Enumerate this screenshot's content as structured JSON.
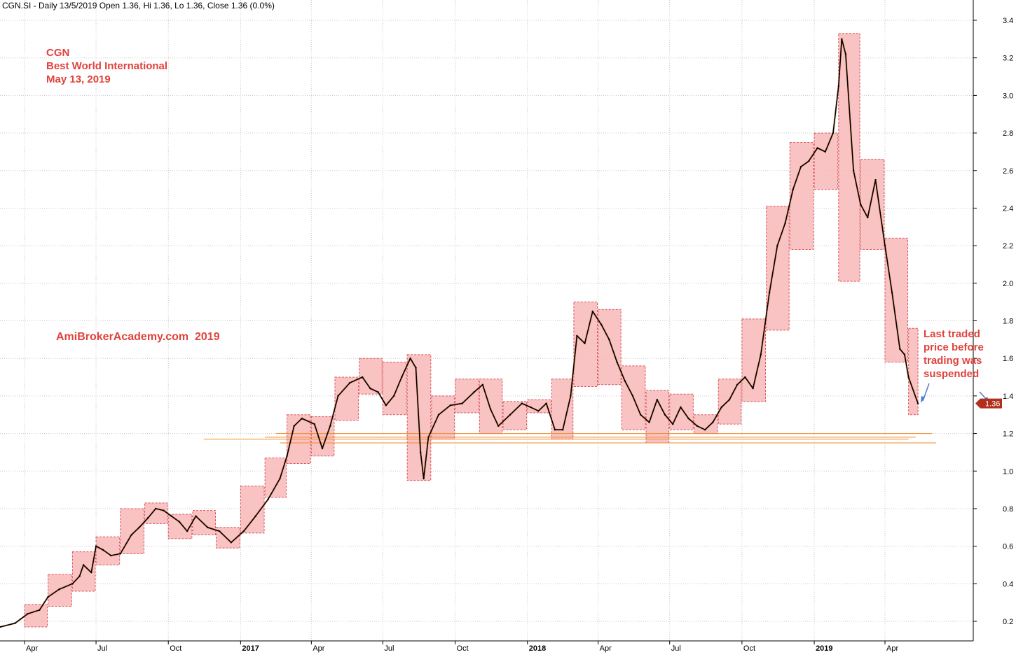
{
  "header": {
    "text": "CGN.SI - Daily 13/5/2019 Open 1.36, Hi 1.36, Lo 1.36, Close 1.36 (0.0%)"
  },
  "annotations": {
    "ticker": "CGN",
    "company": "Best World International",
    "date": "May 13, 2019",
    "watermark": "AmiBrokerAcademy.com  2019",
    "note_lines": [
      "Last traded",
      "price before",
      "trading was",
      "suspended"
    ]
  },
  "last_price_tag": "1.36",
  "colors": {
    "box_fill": "#f9b8b8",
    "box_stroke": "#d9545a",
    "price_line": "#000000",
    "support_line": "#f08a2a",
    "price_tag": "#b0301c",
    "annotation": "#e0433d",
    "arrow": "#4a7bd0"
  },
  "chart_data": {
    "type": "line",
    "title": "",
    "xlabel": "",
    "ylabel": "",
    "ylim": [
      0.1,
      3.45
    ],
    "y_ticks": [
      0.2,
      0.4,
      0.6,
      0.8,
      1.0,
      1.2,
      1.4,
      1.6,
      1.8,
      2.0,
      2.2,
      2.4,
      2.6,
      2.8,
      3.0,
      3.2,
      3.4
    ],
    "y_tick_labels": [
      "0.2",
      "0.4",
      "0.6",
      "0.8",
      "1.0",
      "1.2",
      "1.4",
      "1.6",
      "1.8",
      "2.0",
      "2.2",
      "2.4",
      "2.6",
      "2.8",
      "3.0",
      "3.2",
      "3.4"
    ],
    "x_ticks": [
      {
        "date": "2016-04-01",
        "label": "Apr",
        "year": false
      },
      {
        "date": "2016-07-01",
        "label": "Jul",
        "year": false
      },
      {
        "date": "2016-10-01",
        "label": "Oct",
        "year": false
      },
      {
        "date": "2017-01-01",
        "label": "2017",
        "year": true
      },
      {
        "date": "2017-04-01",
        "label": "Apr",
        "year": false
      },
      {
        "date": "2017-07-01",
        "label": "Jul",
        "year": false
      },
      {
        "date": "2017-10-01",
        "label": "Oct",
        "year": false
      },
      {
        "date": "2018-01-01",
        "label": "2018",
        "year": true
      },
      {
        "date": "2018-04-01",
        "label": "Apr",
        "year": false
      },
      {
        "date": "2018-07-01",
        "label": "Jul",
        "year": false
      },
      {
        "date": "2018-10-01",
        "label": "Oct",
        "year": false
      },
      {
        "date": "2019-01-01",
        "label": "2019",
        "year": true
      },
      {
        "date": "2019-04-01",
        "label": "Apr",
        "year": false
      }
    ],
    "series": [
      {
        "points": [
          [
            "2016-01-02",
            0.16
          ],
          [
            "2016-02-01",
            0.16
          ],
          [
            "2016-03-01",
            0.17
          ],
          [
            "2016-03-20",
            0.19
          ],
          [
            "2016-04-05",
            0.24
          ],
          [
            "2016-04-20",
            0.26
          ],
          [
            "2016-05-01",
            0.33
          ],
          [
            "2016-05-15",
            0.37
          ],
          [
            "2016-06-01",
            0.4
          ],
          [
            "2016-06-10",
            0.44
          ],
          [
            "2016-06-15",
            0.5
          ],
          [
            "2016-06-25",
            0.46
          ],
          [
            "2016-07-01",
            0.6
          ],
          [
            "2016-07-10",
            0.58
          ],
          [
            "2016-07-20",
            0.55
          ],
          [
            "2016-08-01",
            0.56
          ],
          [
            "2016-08-15",
            0.66
          ],
          [
            "2016-08-25",
            0.7
          ],
          [
            "2016-09-05",
            0.75
          ],
          [
            "2016-09-15",
            0.8
          ],
          [
            "2016-09-25",
            0.79
          ],
          [
            "2016-10-05",
            0.76
          ],
          [
            "2016-10-15",
            0.73
          ],
          [
            "2016-10-25",
            0.68
          ],
          [
            "2016-11-05",
            0.76
          ],
          [
            "2016-11-20",
            0.7
          ],
          [
            "2016-12-05",
            0.68
          ],
          [
            "2016-12-20",
            0.62
          ],
          [
            "2017-01-05",
            0.68
          ],
          [
            "2017-01-20",
            0.76
          ],
          [
            "2017-02-05",
            0.85
          ],
          [
            "2017-02-20",
            0.96
          ],
          [
            "2017-03-01",
            1.08
          ],
          [
            "2017-03-10",
            1.24
          ],
          [
            "2017-03-20",
            1.28
          ],
          [
            "2017-04-05",
            1.25
          ],
          [
            "2017-04-15",
            1.12
          ],
          [
            "2017-04-25",
            1.24
          ],
          [
            "2017-05-05",
            1.4
          ],
          [
            "2017-05-20",
            1.47
          ],
          [
            "2017-06-05",
            1.5
          ],
          [
            "2017-06-15",
            1.44
          ],
          [
            "2017-06-25",
            1.42
          ],
          [
            "2017-07-05",
            1.35
          ],
          [
            "2017-07-15",
            1.4
          ],
          [
            "2017-07-25",
            1.5
          ],
          [
            "2017-08-05",
            1.6
          ],
          [
            "2017-08-12",
            1.55
          ],
          [
            "2017-08-18",
            1.1
          ],
          [
            "2017-08-22",
            0.96
          ],
          [
            "2017-08-28",
            1.18
          ],
          [
            "2017-09-10",
            1.3
          ],
          [
            "2017-09-25",
            1.35
          ],
          [
            "2017-10-10",
            1.36
          ],
          [
            "2017-10-25",
            1.42
          ],
          [
            "2017-11-05",
            1.46
          ],
          [
            "2017-11-15",
            1.33
          ],
          [
            "2017-11-25",
            1.24
          ],
          [
            "2017-12-10",
            1.3
          ],
          [
            "2017-12-25",
            1.36
          ],
          [
            "2018-01-05",
            1.34
          ],
          [
            "2018-01-15",
            1.32
          ],
          [
            "2018-01-25",
            1.36
          ],
          [
            "2018-02-05",
            1.22
          ],
          [
            "2018-02-15",
            1.22
          ],
          [
            "2018-02-25",
            1.4
          ],
          [
            "2018-03-05",
            1.72
          ],
          [
            "2018-03-15",
            1.68
          ],
          [
            "2018-03-25",
            1.85
          ],
          [
            "2018-04-05",
            1.78
          ],
          [
            "2018-04-15",
            1.7
          ],
          [
            "2018-04-25",
            1.58
          ],
          [
            "2018-05-05",
            1.48
          ],
          [
            "2018-05-15",
            1.4
          ],
          [
            "2018-05-25",
            1.3
          ],
          [
            "2018-06-05",
            1.26
          ],
          [
            "2018-06-15",
            1.38
          ],
          [
            "2018-06-25",
            1.3
          ],
          [
            "2018-07-05",
            1.25
          ],
          [
            "2018-07-15",
            1.34
          ],
          [
            "2018-07-25",
            1.28
          ],
          [
            "2018-08-05",
            1.24
          ],
          [
            "2018-08-15",
            1.22
          ],
          [
            "2018-08-25",
            1.26
          ],
          [
            "2018-09-05",
            1.34
          ],
          [
            "2018-09-15",
            1.38
          ],
          [
            "2018-09-25",
            1.46
          ],
          [
            "2018-10-05",
            1.5
          ],
          [
            "2018-10-15",
            1.44
          ],
          [
            "2018-10-25",
            1.62
          ],
          [
            "2018-11-05",
            1.95
          ],
          [
            "2018-11-15",
            2.2
          ],
          [
            "2018-11-25",
            2.32
          ],
          [
            "2018-12-05",
            2.5
          ],
          [
            "2018-12-15",
            2.62
          ],
          [
            "2018-12-25",
            2.65
          ],
          [
            "2019-01-05",
            2.72
          ],
          [
            "2019-01-15",
            2.7
          ],
          [
            "2019-01-25",
            2.8
          ],
          [
            "2019-02-01",
            3.05
          ],
          [
            "2019-02-05",
            3.3
          ],
          [
            "2019-02-10",
            3.22
          ],
          [
            "2019-02-20",
            2.6
          ],
          [
            "2019-03-01",
            2.42
          ],
          [
            "2019-03-10",
            2.35
          ],
          [
            "2019-03-20",
            2.55
          ],
          [
            "2019-04-01",
            2.2
          ],
          [
            "2019-04-10",
            1.95
          ],
          [
            "2019-04-20",
            1.65
          ],
          [
            "2019-04-26",
            1.62
          ],
          [
            "2019-05-01",
            1.5
          ],
          [
            "2019-05-13",
            1.36
          ]
        ]
      }
    ],
    "monthly_boxes": [
      [
        "2016-04-01",
        "2016-04-30",
        0.17,
        0.29
      ],
      [
        "2016-05-01",
        "2016-05-31",
        0.28,
        0.45
      ],
      [
        "2016-06-01",
        "2016-06-30",
        0.36,
        0.57
      ],
      [
        "2016-07-01",
        "2016-07-31",
        0.5,
        0.65
      ],
      [
        "2016-08-01",
        "2016-08-31",
        0.56,
        0.8
      ],
      [
        "2016-09-01",
        "2016-09-30",
        0.72,
        0.83
      ],
      [
        "2016-10-01",
        "2016-10-31",
        0.64,
        0.77
      ],
      [
        "2016-11-01",
        "2016-11-30",
        0.66,
        0.79
      ],
      [
        "2016-12-01",
        "2016-12-31",
        0.59,
        0.7
      ],
      [
        "2017-01-01",
        "2017-01-31",
        0.67,
        0.92
      ],
      [
        "2017-02-01",
        "2017-02-28",
        0.86,
        1.07
      ],
      [
        "2017-03-01",
        "2017-03-31",
        1.04,
        1.3
      ],
      [
        "2017-04-01",
        "2017-04-30",
        1.08,
        1.29
      ],
      [
        "2017-05-01",
        "2017-05-31",
        1.27,
        1.5
      ],
      [
        "2017-06-01",
        "2017-06-30",
        1.41,
        1.6
      ],
      [
        "2017-07-01",
        "2017-07-31",
        1.3,
        1.58
      ],
      [
        "2017-08-01",
        "2017-08-31",
        0.95,
        1.62
      ],
      [
        "2017-09-01",
        "2017-09-30",
        1.17,
        1.4
      ],
      [
        "2017-10-01",
        "2017-10-31",
        1.31,
        1.49
      ],
      [
        "2017-11-01",
        "2017-11-30",
        1.2,
        1.49
      ],
      [
        "2017-12-01",
        "2017-12-31",
        1.22,
        1.37
      ],
      [
        "2018-01-01",
        "2018-01-31",
        1.31,
        1.38
      ],
      [
        "2018-02-01",
        "2018-02-28",
        1.17,
        1.49
      ],
      [
        "2018-03-01",
        "2018-03-31",
        1.45,
        1.9
      ],
      [
        "2018-04-01",
        "2018-04-30",
        1.46,
        1.86
      ],
      [
        "2018-05-01",
        "2018-05-31",
        1.22,
        1.56
      ],
      [
        "2018-06-01",
        "2018-06-30",
        1.15,
        1.43
      ],
      [
        "2018-07-01",
        "2018-07-31",
        1.22,
        1.41
      ],
      [
        "2018-08-01",
        "2018-08-31",
        1.2,
        1.3
      ],
      [
        "2018-09-01",
        "2018-09-30",
        1.25,
        1.49
      ],
      [
        "2018-10-01",
        "2018-10-31",
        1.37,
        1.81
      ],
      [
        "2018-11-01",
        "2018-11-30",
        1.75,
        2.41
      ],
      [
        "2018-12-01",
        "2018-12-31",
        2.18,
        2.75
      ],
      [
        "2019-01-01",
        "2019-01-31",
        2.5,
        2.8
      ],
      [
        "2019-02-01",
        "2019-02-28",
        2.01,
        3.33
      ],
      [
        "2019-03-01",
        "2019-03-31",
        2.18,
        2.66
      ],
      [
        "2019-04-01",
        "2019-04-30",
        1.58,
        2.24
      ],
      [
        "2019-05-01",
        "2019-05-13",
        1.3,
        1.76
      ]
    ],
    "support_lines": [
      [
        "2017-02-15",
        "2019-05-31",
        1.2
      ],
      [
        "2017-02-01",
        "2019-05-10",
        1.18
      ],
      [
        "2016-11-15",
        "2019-05-01",
        1.17
      ],
      [
        "2017-02-20",
        "2019-06-05",
        1.15
      ]
    ]
  }
}
